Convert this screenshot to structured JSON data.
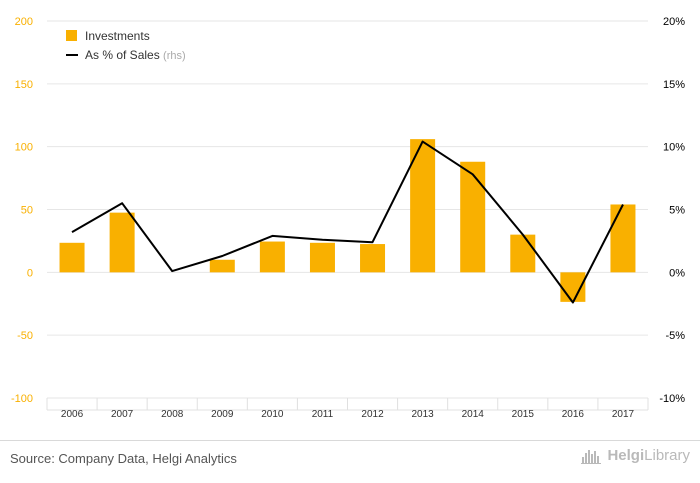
{
  "chart_data": {
    "type": "bar",
    "categories": [
      "2006",
      "2007",
      "2008",
      "2009",
      "2010",
      "2011",
      "2012",
      "2013",
      "2014",
      "2015",
      "2016",
      "2017"
    ],
    "series": [
      {
        "name": "Investments",
        "type": "bar",
        "axis": "left",
        "color": "#f9b000",
        "values": [
          23.5,
          47.5,
          0,
          10,
          24.5,
          23.5,
          22.5,
          106,
          88,
          30,
          -23.5,
          54
        ]
      },
      {
        "name": "As % of Sales",
        "type": "line",
        "axis": "right",
        "color": "#000000",
        "values": [
          3.2,
          5.5,
          0.1,
          1.3,
          2.9,
          2.6,
          2.4,
          10.4,
          7.8,
          3.0,
          -2.4,
          5.4
        ]
      }
    ],
    "y_left": {
      "min": -100,
      "max": 200,
      "ticks": [
        "-100",
        "-50",
        "0",
        "50",
        "100",
        "150",
        "200"
      ],
      "tick_color": "#f9b000"
    },
    "y_right": {
      "min": -10,
      "max": 20,
      "ticks": [
        "-10%",
        "-5%",
        "0%",
        "5%",
        "10%",
        "15%",
        "20%"
      ]
    },
    "legend": {
      "position": "top-left",
      "items": [
        {
          "label": "Investments",
          "marker": "square"
        },
        {
          "label": "As % of Sales",
          "suffix": "(rhs)",
          "marker": "line"
        }
      ]
    },
    "grid": true
  },
  "footer": {
    "source": "Source: Company Data, Helgi Analytics",
    "logo_bold": "Helgi",
    "logo_light": "Library"
  }
}
